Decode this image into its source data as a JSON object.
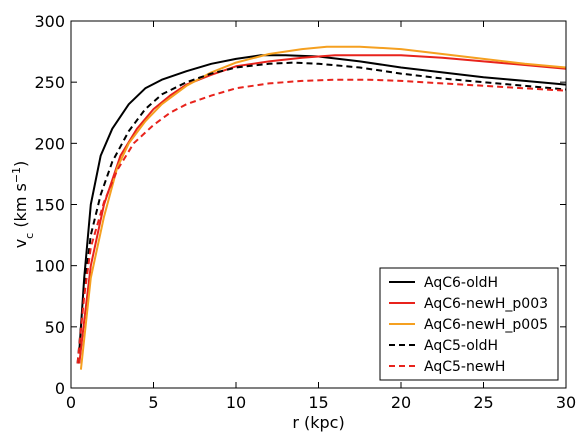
{
  "chart_data": {
    "type": "line",
    "title": "",
    "xlabel": "r (kpc)",
    "ylabel": {
      "base": "v",
      "subscript": "c",
      "unit_open": " (km s",
      "superscript": "−1",
      "unit_close": ")"
    },
    "xlim": [
      0,
      30
    ],
    "ylim": [
      0,
      300
    ],
    "x_ticks": [
      0,
      5,
      10,
      15,
      20,
      25,
      30
    ],
    "y_ticks": [
      0,
      50,
      100,
      150,
      200,
      250,
      300
    ],
    "grid": false,
    "legend_position": "lower-right",
    "series": [
      {
        "name": "AqC6-oldH",
        "color": "#000000",
        "dash": "solid",
        "points": [
          [
            0.5,
            30
          ],
          [
            0.8,
            90
          ],
          [
            1.2,
            150
          ],
          [
            1.8,
            190
          ],
          [
            2.5,
            212
          ],
          [
            3.5,
            232
          ],
          [
            4.5,
            245
          ],
          [
            5.5,
            252
          ],
          [
            7,
            259
          ],
          [
            8.5,
            265
          ],
          [
            10,
            269
          ],
          [
            11.5,
            272
          ],
          [
            13,
            272
          ],
          [
            15,
            271
          ],
          [
            17.5,
            267
          ],
          [
            20,
            262
          ],
          [
            22.5,
            258
          ],
          [
            25,
            254
          ],
          [
            27.5,
            251
          ],
          [
            30,
            248
          ]
        ]
      },
      {
        "name": "AqC6-newH_p003",
        "color": "#e8231c",
        "dash": "solid",
        "points": [
          [
            0.5,
            20
          ],
          [
            0.8,
            55
          ],
          [
            1.2,
            100
          ],
          [
            2,
            150
          ],
          [
            3,
            190
          ],
          [
            4,
            212
          ],
          [
            5,
            228
          ],
          [
            6,
            239
          ],
          [
            7,
            248
          ],
          [
            8.5,
            256
          ],
          [
            10,
            263
          ],
          [
            12,
            267
          ],
          [
            14,
            270
          ],
          [
            16,
            272
          ],
          [
            18,
            272
          ],
          [
            20,
            272
          ],
          [
            22.5,
            270
          ],
          [
            25,
            267
          ],
          [
            27.5,
            264
          ],
          [
            30,
            261
          ]
        ]
      },
      {
        "name": "AqC6-newH_p005",
        "color": "#f5a020",
        "dash": "solid",
        "points": [
          [
            0.6,
            15
          ],
          [
            0.8,
            40
          ],
          [
            1.2,
            90
          ],
          [
            2,
            140
          ],
          [
            2.8,
            180
          ],
          [
            3.5,
            200
          ],
          [
            4.5,
            218
          ],
          [
            5.5,
            232
          ],
          [
            7,
            247
          ],
          [
            8.5,
            258
          ],
          [
            10,
            266
          ],
          [
            12,
            273
          ],
          [
            14,
            277
          ],
          [
            15.5,
            279
          ],
          [
            17.5,
            279
          ],
          [
            20,
            277
          ],
          [
            22.5,
            273
          ],
          [
            25,
            269
          ],
          [
            27.5,
            265
          ],
          [
            30,
            262
          ]
        ]
      },
      {
        "name": "AqC5-oldH",
        "color": "#000000",
        "dash": "dashed",
        "points": [
          [
            0.4,
            20
          ],
          [
            0.8,
            80
          ],
          [
            1.2,
            125
          ],
          [
            1.8,
            158
          ],
          [
            2.5,
            185
          ],
          [
            3.5,
            210
          ],
          [
            4.5,
            228
          ],
          [
            5.5,
            240
          ],
          [
            7,
            250
          ],
          [
            8.5,
            257
          ],
          [
            10,
            262
          ],
          [
            12,
            265
          ],
          [
            13.5,
            266
          ],
          [
            15,
            265
          ],
          [
            17.5,
            262
          ],
          [
            20,
            257
          ],
          [
            22.5,
            253
          ],
          [
            25,
            250
          ],
          [
            27.5,
            247
          ],
          [
            30,
            244
          ]
        ]
      },
      {
        "name": "AqC5-newH",
        "color": "#e8231c",
        "dash": "dashed",
        "points": [
          [
            0.4,
            20
          ],
          [
            0.8,
            75
          ],
          [
            1.2,
            115
          ],
          [
            2,
            152
          ],
          [
            2.8,
            178
          ],
          [
            3.8,
            200
          ],
          [
            5,
            215
          ],
          [
            6,
            225
          ],
          [
            7,
            232
          ],
          [
            8.5,
            239
          ],
          [
            10,
            245
          ],
          [
            12,
            249
          ],
          [
            14,
            251
          ],
          [
            16,
            252
          ],
          [
            18,
            252
          ],
          [
            20,
            251
          ],
          [
            22.5,
            249
          ],
          [
            25,
            247
          ],
          [
            27.5,
            245
          ],
          [
            30,
            243
          ]
        ]
      }
    ]
  }
}
